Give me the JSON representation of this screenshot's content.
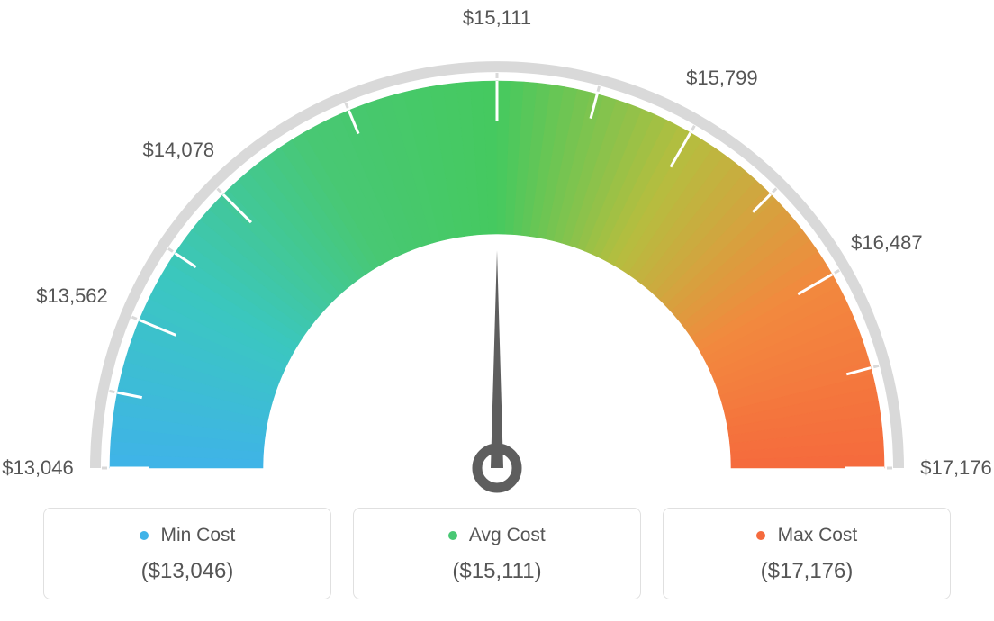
{
  "gauge": {
    "type": "gauge",
    "min_value": 13046,
    "avg_value": 15111,
    "max_value": 17176,
    "values": [
      13046,
      13562,
      14078,
      15111,
      15799,
      16487,
      17176
    ],
    "tick_labels": [
      "$13,046",
      "$13,562",
      "$14,078",
      "$15,111",
      "$15,799",
      "$16,487",
      "$17,176"
    ],
    "needle_value": 15111,
    "gradient_colors": [
      "#3fb3e8",
      "#3bc7c0",
      "#48c874",
      "#45c95f",
      "#b5be3f",
      "#f2893e",
      "#f56a3d"
    ],
    "outer_arc_color": "#d9d9d9",
    "tick_color": "#ffffff",
    "needle_color": "#5e5e5e",
    "background_color": "#ffffff",
    "label_fontsize": 22,
    "label_color": "#555555",
    "start_angle_deg": 180,
    "end_angle_deg": 0
  },
  "legend": {
    "min": {
      "title": "Min Cost",
      "value": "($13,046)",
      "dot_color": "#3fb3e8"
    },
    "avg": {
      "title": "Avg Cost",
      "value": "($15,111)",
      "dot_color": "#48c874"
    },
    "max": {
      "title": "Max Cost",
      "value": "($17,176)",
      "dot_color": "#f56a3d"
    },
    "card_border_color": "#e0e0e0",
    "card_title_fontsize": 21,
    "card_value_fontsize": 24,
    "text_color": "#555555"
  }
}
